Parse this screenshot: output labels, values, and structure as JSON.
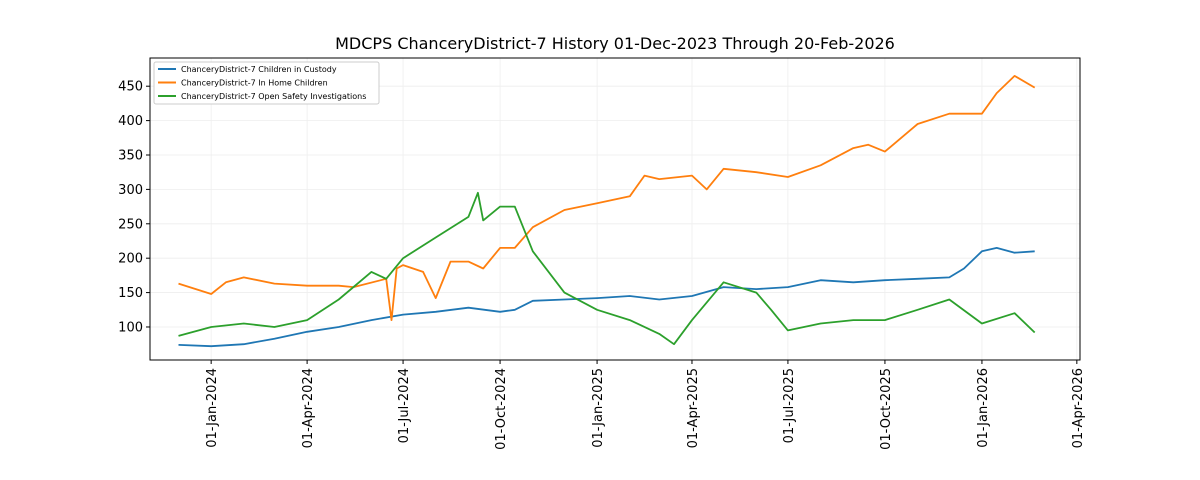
{
  "chart_data": {
    "type": "line",
    "title": "MDCPS ChanceryDistrict-7 History 01-Dec-2023 Through 20-Feb-2026",
    "xlabel": "",
    "ylabel": "",
    "ylim": [
      52,
      491
    ],
    "xlim": [
      "2023-11-04",
      "2026-04-04"
    ],
    "grid": true,
    "legend_position": "top-left",
    "yticks": [
      100,
      150,
      200,
      250,
      300,
      350,
      400,
      450
    ],
    "xticks": [
      {
        "date": "2024-01-01",
        "label": "01-Jan-2024"
      },
      {
        "date": "2024-04-01",
        "label": "01-Apr-2024"
      },
      {
        "date": "2024-07-01",
        "label": "01-Jul-2024"
      },
      {
        "date": "2024-10-01",
        "label": "01-Oct-2024"
      },
      {
        "date": "2025-01-01",
        "label": "01-Jan-2025"
      },
      {
        "date": "2025-04-01",
        "label": "01-Apr-2025"
      },
      {
        "date": "2025-07-01",
        "label": "01-Jul-2025"
      },
      {
        "date": "2025-10-01",
        "label": "01-Oct-2025"
      },
      {
        "date": "2026-01-01",
        "label": "01-Jan-2026"
      },
      {
        "date": "2026-04-01",
        "label": "01-Apr-2026"
      }
    ],
    "series": [
      {
        "name": "ChanceryDistrict-7 Children in Custody",
        "color": "#1f77b4",
        "points": [
          [
            "2023-12-01",
            74
          ],
          [
            "2024-01-01",
            72
          ],
          [
            "2024-02-01",
            75
          ],
          [
            "2024-03-01",
            83
          ],
          [
            "2024-04-01",
            93
          ],
          [
            "2024-05-01",
            100
          ],
          [
            "2024-06-01",
            110
          ],
          [
            "2024-07-01",
            118
          ],
          [
            "2024-08-01",
            122
          ],
          [
            "2024-09-01",
            128
          ],
          [
            "2024-10-01",
            122
          ],
          [
            "2024-10-15",
            125
          ],
          [
            "2024-11-01",
            138
          ],
          [
            "2024-12-01",
            140
          ],
          [
            "2025-01-01",
            142
          ],
          [
            "2025-02-01",
            145
          ],
          [
            "2025-03-01",
            140
          ],
          [
            "2025-04-01",
            145
          ],
          [
            "2025-05-01",
            158
          ],
          [
            "2025-06-01",
            155
          ],
          [
            "2025-07-01",
            158
          ],
          [
            "2025-08-01",
            168
          ],
          [
            "2025-09-01",
            165
          ],
          [
            "2025-10-01",
            168
          ],
          [
            "2025-11-01",
            170
          ],
          [
            "2025-12-01",
            172
          ],
          [
            "2025-12-15",
            185
          ],
          [
            "2026-01-01",
            210
          ],
          [
            "2026-01-15",
            215
          ],
          [
            "2026-02-01",
            208
          ],
          [
            "2026-02-20",
            210
          ]
        ]
      },
      {
        "name": "ChanceryDistrict-7 In Home Children",
        "color": "#ff7f0e",
        "points": [
          [
            "2023-12-01",
            163
          ],
          [
            "2024-01-01",
            148
          ],
          [
            "2024-01-15",
            165
          ],
          [
            "2024-02-01",
            172
          ],
          [
            "2024-03-01",
            163
          ],
          [
            "2024-04-01",
            160
          ],
          [
            "2024-05-01",
            160
          ],
          [
            "2024-05-15",
            158
          ],
          [
            "2024-06-15",
            170
          ],
          [
            "2024-06-20",
            110
          ],
          [
            "2024-06-25",
            185
          ],
          [
            "2024-07-01",
            190
          ],
          [
            "2024-07-20",
            180
          ],
          [
            "2024-08-01",
            142
          ],
          [
            "2024-08-15",
            195
          ],
          [
            "2024-09-01",
            195
          ],
          [
            "2024-09-15",
            185
          ],
          [
            "2024-10-01",
            215
          ],
          [
            "2024-10-15",
            215
          ],
          [
            "2024-11-01",
            245
          ],
          [
            "2024-12-01",
            270
          ],
          [
            "2025-01-01",
            280
          ],
          [
            "2025-02-01",
            290
          ],
          [
            "2025-02-15",
            320
          ],
          [
            "2025-03-01",
            315
          ],
          [
            "2025-04-01",
            320
          ],
          [
            "2025-04-15",
            300
          ],
          [
            "2025-05-01",
            330
          ],
          [
            "2025-06-01",
            325
          ],
          [
            "2025-07-01",
            318
          ],
          [
            "2025-08-01",
            335
          ],
          [
            "2025-09-01",
            360
          ],
          [
            "2025-09-15",
            365
          ],
          [
            "2025-10-01",
            355
          ],
          [
            "2025-11-01",
            395
          ],
          [
            "2025-12-01",
            410
          ],
          [
            "2026-01-01",
            410
          ],
          [
            "2026-01-15",
            440
          ],
          [
            "2026-02-01",
            465
          ],
          [
            "2026-02-20",
            448
          ]
        ]
      },
      {
        "name": "ChanceryDistrict-7 Open Safety Investigations",
        "color": "#2ca02c",
        "points": [
          [
            "2023-12-01",
            87
          ],
          [
            "2024-01-01",
            100
          ],
          [
            "2024-02-01",
            105
          ],
          [
            "2024-03-01",
            100
          ],
          [
            "2024-04-01",
            110
          ],
          [
            "2024-05-01",
            140
          ],
          [
            "2024-06-01",
            180
          ],
          [
            "2024-06-15",
            170
          ],
          [
            "2024-07-01",
            200
          ],
          [
            "2024-08-01",
            230
          ],
          [
            "2024-09-01",
            260
          ],
          [
            "2024-09-10",
            295
          ],
          [
            "2024-09-15",
            255
          ],
          [
            "2024-10-01",
            275
          ],
          [
            "2024-10-15",
            275
          ],
          [
            "2024-11-01",
            210
          ],
          [
            "2024-12-01",
            150
          ],
          [
            "2025-01-01",
            125
          ],
          [
            "2025-02-01",
            110
          ],
          [
            "2025-03-01",
            90
          ],
          [
            "2025-03-15",
            75
          ],
          [
            "2025-04-01",
            110
          ],
          [
            "2025-05-01",
            165
          ],
          [
            "2025-06-01",
            150
          ],
          [
            "2025-06-15",
            125
          ],
          [
            "2025-07-01",
            95
          ],
          [
            "2025-08-01",
            105
          ],
          [
            "2025-09-01",
            110
          ],
          [
            "2025-10-01",
            110
          ],
          [
            "2025-11-01",
            125
          ],
          [
            "2025-12-01",
            140
          ],
          [
            "2026-01-01",
            105
          ],
          [
            "2026-02-01",
            120
          ],
          [
            "2026-02-20",
            92
          ]
        ]
      }
    ]
  }
}
